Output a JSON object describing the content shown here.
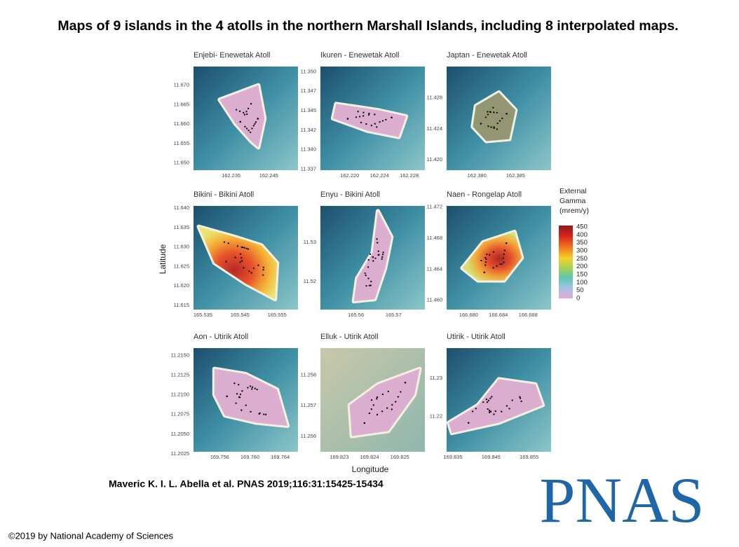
{
  "title": "Maps of 9 islands in the 4 atolls in the northern Marshall Islands, including 8 interpolated maps.",
  "figure": {
    "y_axis_label": "Latitude",
    "x_axis_label": "Longitude",
    "panels": [
      {
        "title": "Enjebi- Enewetak Atoll",
        "yticks": [
          "11.670",
          "11.665",
          "11.660",
          "11.655",
          "11.650"
        ],
        "xticks": [
          "162.235",
          "162.245"
        ]
      },
      {
        "title": "Ikuren - Enewetak Atoll",
        "yticks": [
          "11.350",
          "11.347",
          "11.345",
          "11.342",
          "11.340",
          "11.337"
        ],
        "xticks": [
          "162.220",
          "162.224",
          "162.228"
        ]
      },
      {
        "title": "Japtan - Enewetak Atoll",
        "yticks": [
          "11.428",
          "11.424",
          "11.420"
        ],
        "xticks": [
          "162.380",
          "162.385"
        ]
      },
      {
        "title": "Bikini - Bikini Atoll",
        "yticks": [
          "11.640",
          "11.635",
          "11.630",
          "11.625",
          "11.620",
          "11.615"
        ],
        "xticks": [
          "165.535",
          "165.545",
          "165.555"
        ]
      },
      {
        "title": "Enyu - Bikini Atoll",
        "yticks": [
          "11.53",
          "11.52"
        ],
        "xticks": [
          "165.56",
          "165.57"
        ]
      },
      {
        "title": "Naen - Rongelap Atoll",
        "yticks": [
          "11.472",
          "11.468",
          "11.464",
          "11.460"
        ],
        "xticks": [
          "166.680",
          "166.684",
          "166.688"
        ]
      },
      {
        "title": "Aon - Utirik Atoll",
        "yticks": [
          "11.2150",
          "11.2125",
          "11.2100",
          "11.2075",
          "11.2050",
          "11.2025"
        ],
        "xticks": [
          "169.756",
          "169.760",
          "169.764"
        ]
      },
      {
        "title": "Elluk - Utirik Atoll",
        "yticks": [
          "11.258",
          "11.257",
          "11.256"
        ],
        "xticks": [
          "169.823",
          "169.824",
          "169.825"
        ]
      },
      {
        "title": "Utirik - Utirik Atoll",
        "yticks": [
          "11.23",
          "11.22"
        ],
        "xticks": [
          "169.835",
          "169.845",
          "169.855"
        ]
      }
    ],
    "legend": {
      "title_lines": [
        "External",
        "Gamma",
        "(mrem/y)"
      ],
      "labels": [
        "450",
        "400",
        "350",
        "300",
        "250",
        "200",
        "150",
        "100",
        "50",
        "0"
      ]
    }
  },
  "citation": "Maveric K. I. L. Abella et al. PNAS 2019;116:31:15425-15434",
  "logo": "PNAS",
  "copyright": "©2019 by National Academy of Sciences"
}
